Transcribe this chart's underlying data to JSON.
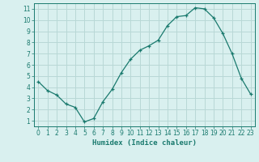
{
  "x": [
    0,
    1,
    2,
    3,
    4,
    5,
    6,
    7,
    8,
    9,
    10,
    11,
    12,
    13,
    14,
    15,
    16,
    17,
    18,
    19,
    20,
    21,
    22,
    23
  ],
  "y": [
    4.5,
    3.7,
    3.3,
    2.5,
    2.2,
    0.9,
    1.2,
    2.7,
    3.8,
    5.3,
    6.5,
    7.3,
    7.7,
    8.2,
    9.5,
    10.3,
    10.4,
    11.1,
    11.0,
    10.2,
    8.8,
    7.0,
    4.8,
    3.4
  ],
  "xlabel": "Humidex (Indice chaleur)",
  "xlim": [
    -0.5,
    23.5
  ],
  "ylim": [
    0.5,
    11.5
  ],
  "line_color": "#1a7a6e",
  "marker": "+",
  "bg_color": "#d9f0ef",
  "grid_color": "#b8d8d6",
  "tick_color": "#1a7a6e",
  "label_color": "#1a7a6e",
  "yticks": [
    1,
    2,
    3,
    4,
    5,
    6,
    7,
    8,
    9,
    10,
    11
  ],
  "xticks": [
    0,
    1,
    2,
    3,
    4,
    5,
    6,
    7,
    8,
    9,
    10,
    11,
    12,
    13,
    14,
    15,
    16,
    17,
    18,
    19,
    20,
    21,
    22,
    23
  ]
}
